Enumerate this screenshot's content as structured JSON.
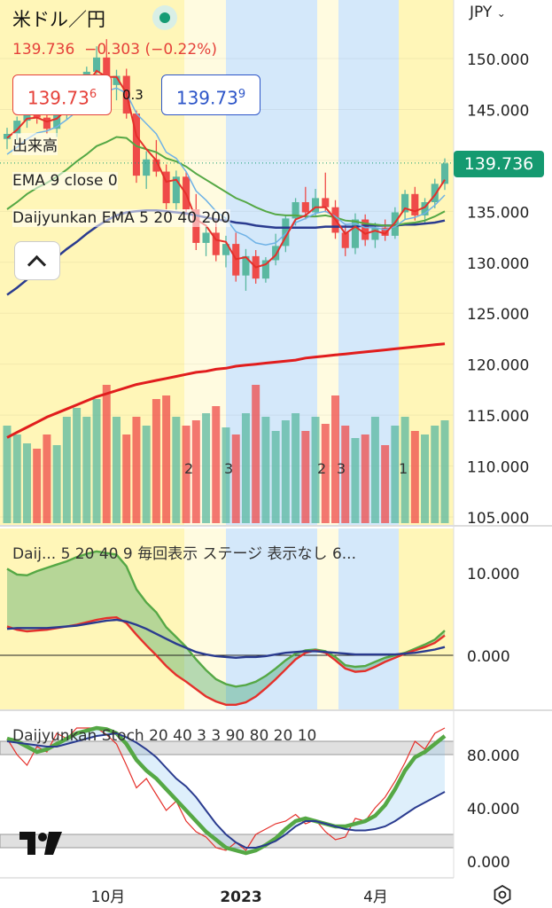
{
  "header": {
    "symbol": "米ドル／円",
    "last": "139.736",
    "change": "−0.303 (−0.22%)",
    "sell_main": "139.73",
    "sell_sup": "6",
    "buy_main": "139.73",
    "buy_sup": "9",
    "spread": "0.3",
    "currency": "JPY"
  },
  "labels": {
    "volume": "出来高",
    "ema": "EMA 9 close 0",
    "dj_ema": "Daijyunkan EMA 5 20 40 200",
    "panel2": "Daij...  5 20 40 9 毎回表示 ステージ 表示なし 6...",
    "panel3": "Daijyunkan Stoch 20 40 3 3 90 80 20 10"
  },
  "colors": {
    "up": "#5ab8a0",
    "down": "#ef4b49",
    "current_price": "#159a70",
    "ema_short": "#e5302b",
    "ema_mid": "#6fb2e6",
    "ema_long": "#55a845",
    "ema_200": "#2a3b8f",
    "stage_yellow": "#fff6b8",
    "stage_blue": "#d4e8fa"
  },
  "chart_data": [
    {
      "type": "candlestick",
      "title": "米ドル／円",
      "x_ticks": [
        "10月",
        "2023",
        "4月"
      ],
      "y_ticks": [
        "150.000",
        "145.000",
        "140.000",
        "135.000",
        "130.000",
        "125.000",
        "120.000",
        "115.000",
        "110.000",
        "105.000"
      ],
      "ylim": [
        104.5,
        152
      ],
      "current_price": "139.736",
      "ohlc": [
        [
          142.1,
          143.2,
          141.1,
          142.6
        ],
        [
          142.6,
          144.3,
          142.0,
          143.9
        ],
        [
          143.9,
          145.8,
          143.2,
          145.1
        ],
        [
          145.1,
          145.9,
          143.6,
          144.2
        ],
        [
          144.2,
          145.3,
          142.6,
          143.1
        ],
        [
          143.1,
          144.9,
          142.3,
          144.6
        ],
        [
          144.6,
          146.6,
          144.0,
          146.1
        ],
        [
          146.1,
          148.3,
          145.6,
          147.6
        ],
        [
          147.6,
          149.2,
          146.8,
          148.7
        ],
        [
          148.7,
          151.2,
          147.3,
          150.1
        ],
        [
          150.1,
          151.9,
          146.2,
          147.4
        ],
        [
          147.4,
          148.9,
          145.9,
          148.3
        ],
        [
          148.3,
          149.0,
          144.1,
          144.6
        ],
        [
          144.6,
          144.9,
          137.8,
          138.5
        ],
        [
          138.5,
          140.9,
          137.2,
          140.1
        ],
        [
          140.1,
          142.0,
          138.4,
          138.9
        ],
        [
          138.9,
          139.6,
          135.2,
          135.8
        ],
        [
          135.8,
          139.0,
          135.1,
          138.4
        ],
        [
          138.4,
          138.9,
          134.6,
          135.2
        ],
        [
          135.2,
          136.7,
          131.2,
          131.9
        ],
        [
          131.9,
          133.5,
          130.6,
          132.9
        ],
        [
          132.9,
          134.1,
          130.1,
          130.7
        ],
        [
          130.7,
          132.6,
          129.5,
          131.8
        ],
        [
          131.8,
          132.9,
          128.1,
          128.7
        ],
        [
          128.7,
          131.3,
          127.2,
          130.6
        ],
        [
          130.6,
          131.2,
          127.9,
          128.4
        ],
        [
          128.4,
          130.5,
          128.0,
          130.2
        ],
        [
          130.2,
          132.8,
          129.7,
          131.6
        ],
        [
          131.6,
          134.6,
          131.0,
          134.3
        ],
        [
          134.3,
          136.3,
          133.6,
          135.9
        ],
        [
          135.9,
          137.4,
          134.2,
          134.9
        ],
        [
          134.9,
          137.2,
          134.6,
          136.3
        ],
        [
          136.3,
          138.8,
          134.9,
          135.4
        ],
        [
          135.4,
          136.1,
          132.3,
          132.9
        ],
        [
          132.9,
          133.8,
          130.6,
          131.4
        ],
        [
          131.4,
          134.8,
          130.8,
          134.2
        ],
        [
          134.2,
          134.7,
          131.6,
          132.2
        ],
        [
          132.2,
          133.9,
          131.4,
          133.4
        ],
        [
          133.4,
          134.2,
          132.1,
          132.6
        ],
        [
          132.6,
          135.4,
          132.3,
          134.9
        ],
        [
          134.9,
          137.1,
          134.2,
          136.7
        ],
        [
          136.7,
          137.4,
          134.1,
          134.6
        ],
        [
          134.6,
          136.3,
          133.8,
          135.9
        ],
        [
          135.9,
          138.2,
          135.3,
          137.7
        ],
        [
          137.7,
          140.2,
          137.1,
          139.7
        ]
      ],
      "ema_short": [
        142.2,
        143.0,
        144.1,
        144.2,
        143.8,
        144.1,
        145.0,
        146.2,
        147.4,
        148.8,
        148.2,
        148.2,
        146.6,
        142.4,
        141.1,
        140.0,
        137.9,
        138.1,
        136.7,
        134.2,
        133.6,
        132.2,
        132.0,
        130.3,
        130.5,
        129.5,
        129.8,
        130.7,
        132.5,
        134.2,
        134.6,
        135.4,
        135.4,
        134.2,
        132.8,
        133.5,
        132.8,
        133.1,
        132.8,
        133.9,
        135.3,
        135.0,
        135.4,
        136.6,
        138.1
      ],
      "ema_mid": [
        140.6,
        141.3,
        142.1,
        142.7,
        142.9,
        143.3,
        144.0,
        144.8,
        145.7,
        146.6,
        146.8,
        147.1,
        146.6,
        144.6,
        143.6,
        142.6,
        140.8,
        140.2,
        138.9,
        137.0,
        136.1,
        135.0,
        134.3,
        133.0,
        132.6,
        131.9,
        131.7,
        131.9,
        132.8,
        133.9,
        134.3,
        134.8,
        135.0,
        134.5,
        133.7,
        133.8,
        133.4,
        133.4,
        133.2,
        133.5,
        134.2,
        134.4,
        134.8,
        135.6,
        136.6
      ],
      "ema_long": [
        135.2,
        135.9,
        136.7,
        137.3,
        137.8,
        138.4,
        139.1,
        139.9,
        140.6,
        141.4,
        141.8,
        142.3,
        142.2,
        141.4,
        141.1,
        140.8,
        140.2,
        139.9,
        139.4,
        138.7,
        138.1,
        137.5,
        136.9,
        136.3,
        135.9,
        135.4,
        135.0,
        134.7,
        134.6,
        134.6,
        134.5,
        134.5,
        134.6,
        134.4,
        134.1,
        134.0,
        133.8,
        133.7,
        133.6,
        133.6,
        133.8,
        133.9,
        134.1,
        134.5,
        135.0
      ],
      "ema_200": [
        126.8,
        127.5,
        128.3,
        129.1,
        129.8,
        130.5,
        131.3,
        132.0,
        132.8,
        133.5,
        134.1,
        134.6,
        134.9,
        135.0,
        135.1,
        135.1,
        135.0,
        134.9,
        134.8,
        134.6,
        134.4,
        134.2,
        134.1,
        133.9,
        133.8,
        133.6,
        133.5,
        133.4,
        133.4,
        133.4,
        133.4,
        133.4,
        133.5,
        133.5,
        133.5,
        133.5,
        133.6,
        133.6,
        133.6,
        133.6,
        133.7,
        133.7,
        133.8,
        133.9,
        134.1
      ],
      "sma_200": [
        112.8,
        113.3,
        113.8,
        114.3,
        114.8,
        115.2,
        115.6,
        116.0,
        116.4,
        116.8,
        117.1,
        117.4,
        117.7,
        118.0,
        118.2,
        118.4,
        118.6,
        118.8,
        119.0,
        119.2,
        119.3,
        119.5,
        119.6,
        119.8,
        119.9,
        120.0,
        120.1,
        120.2,
        120.3,
        120.4,
        120.6,
        120.7,
        120.8,
        120.9,
        121.0,
        121.1,
        121.2,
        121.3,
        121.4,
        121.5,
        121.6,
        121.7,
        121.8,
        121.9,
        122.0
      ],
      "volume": [
        0.55,
        0.5,
        0.45,
        0.42,
        0.5,
        0.44,
        0.6,
        0.65,
        0.6,
        0.7,
        0.78,
        0.6,
        0.5,
        0.6,
        0.55,
        0.7,
        0.72,
        0.6,
        0.55,
        0.58,
        0.62,
        0.66,
        0.54,
        0.5,
        0.62,
        0.78,
        0.6,
        0.52,
        0.58,
        0.62,
        0.52,
        0.6,
        0.56,
        0.72,
        0.55,
        0.48,
        0.5,
        0.6,
        0.44,
        0.55,
        0.6,
        0.52,
        0.5,
        0.55,
        0.58
      ],
      "volume_markers": [
        "2",
        "3",
        "2",
        "3",
        "1"
      ],
      "stage_bands": [
        "yellow",
        "lightyellow",
        "blue",
        "lightyellow",
        "blue",
        "yellow"
      ]
    },
    {
      "type": "line",
      "title": "Daij...  5 20 40 9 毎回表示 ステージ 表示なし 6...",
      "y_ticks": [
        "10.000",
        "0.000"
      ],
      "ylim": [
        -6.5,
        14
      ],
      "series": [
        {
          "color": "#55a845",
          "values": [
            10.5,
            9.8,
            9.7,
            10.2,
            10.6,
            11.0,
            11.4,
            11.9,
            12.3,
            12.6,
            12.4,
            12.2,
            10.8,
            8.0,
            6.4,
            5.2,
            3.4,
            2.2,
            1.0,
            -0.5,
            -1.8,
            -2.9,
            -3.5,
            -3.8,
            -3.6,
            -3.2,
            -2.5,
            -1.6,
            -0.6,
            0.2,
            0.6,
            0.7,
            0.5,
            -0.2,
            -1.2,
            -1.4,
            -1.3,
            -0.8,
            -0.3,
            0.0,
            0.3,
            0.8,
            1.3,
            1.9,
            3.0
          ]
        },
        {
          "color": "#e5302b",
          "values": [
            3.5,
            3.1,
            2.9,
            3.0,
            3.1,
            3.3,
            3.5,
            3.7,
            4.0,
            4.3,
            4.5,
            4.6,
            3.9,
            2.5,
            1.2,
            0.0,
            -1.3,
            -2.4,
            -3.2,
            -4.1,
            -5.0,
            -5.6,
            -6.0,
            -6.0,
            -5.7,
            -5.0,
            -4.0,
            -2.9,
            -1.7,
            -0.5,
            0.3,
            0.6,
            0.3,
            -0.6,
            -1.6,
            -2.0,
            -1.9,
            -1.4,
            -0.8,
            -0.3,
            0.2,
            0.6,
            1.0,
            1.5,
            2.4
          ]
        },
        {
          "color": "#2a3b8f",
          "values": [
            3.2,
            3.3,
            3.3,
            3.3,
            3.3,
            3.4,
            3.5,
            3.6,
            3.8,
            4.0,
            4.2,
            4.3,
            4.1,
            3.7,
            3.2,
            2.6,
            2.0,
            1.4,
            0.9,
            0.4,
            0.1,
            -0.1,
            -0.2,
            -0.3,
            -0.2,
            -0.2,
            -0.1,
            0.1,
            0.3,
            0.4,
            0.5,
            0.5,
            0.4,
            0.3,
            0.2,
            0.1,
            0.1,
            0.1,
            0.1,
            0.1,
            0.2,
            0.3,
            0.5,
            0.7,
            1.0
          ]
        }
      ]
    },
    {
      "type": "line",
      "title": "Daijyunkan Stoch 20 40 3 3 90 80 20 10",
      "y_ticks": [
        "80.000",
        "40.000",
        "0.000"
      ],
      "ylim": [
        -6,
        114
      ],
      "series": [
        {
          "color": "#e5302b",
          "values": [
            92,
            80,
            72,
            86,
            82,
            96,
            92,
            100,
            100,
            100,
            95,
            88,
            72,
            55,
            62,
            50,
            38,
            45,
            30,
            22,
            18,
            10,
            8,
            14,
            8,
            20,
            24,
            28,
            30,
            35,
            28,
            31,
            22,
            16,
            18,
            32,
            30,
            40,
            48,
            60,
            74,
            90,
            84,
            96,
            100
          ]
        },
        {
          "color": "#55a845",
          "values": [
            92,
            90,
            86,
            82,
            84,
            88,
            92,
            96,
            98,
            100,
            99,
            96,
            88,
            76,
            68,
            62,
            54,
            46,
            38,
            30,
            22,
            16,
            10,
            8,
            6,
            8,
            12,
            17,
            24,
            30,
            32,
            30,
            28,
            26,
            26,
            28,
            30,
            34,
            42,
            54,
            68,
            78,
            82,
            88,
            94
          ]
        },
        {
          "color": "#2a3b8f",
          "values": [
            90,
            89,
            88,
            87,
            86,
            86,
            88,
            90,
            92,
            94,
            95,
            96,
            93,
            89,
            84,
            78,
            70,
            62,
            56,
            48,
            38,
            28,
            20,
            14,
            10,
            10,
            12,
            15,
            20,
            26,
            30,
            30,
            28,
            26,
            24,
            23,
            23,
            24,
            26,
            30,
            35,
            40,
            44,
            48,
            52
          ]
        }
      ]
    }
  ]
}
